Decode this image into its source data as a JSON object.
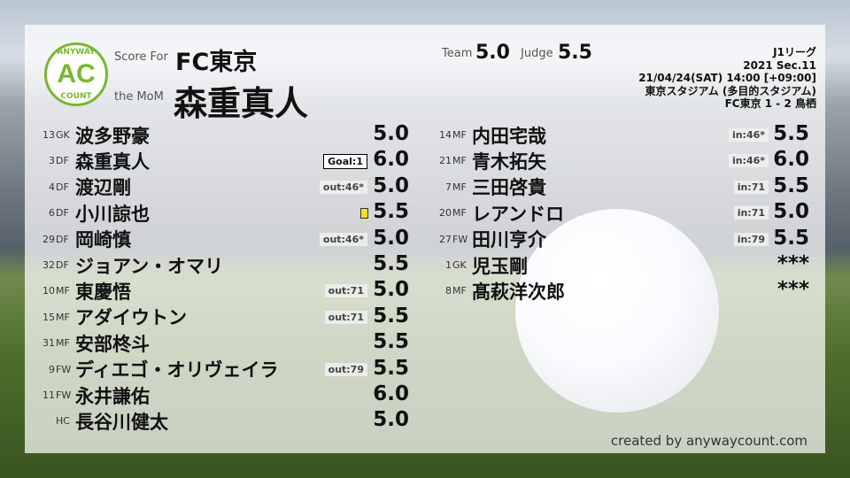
{
  "header": {
    "score_for_label": "Score For",
    "team": "FC東京",
    "mom_label": "the MoM",
    "mom": "森重真人",
    "team_label": "Team",
    "team_score": "5.0",
    "judge_label": "Judge",
    "judge_score": "5.5"
  },
  "logo": {
    "top": "ANYWAY",
    "mid": "AC",
    "bottom": "COUNT",
    "color": "#7ab72e"
  },
  "match": {
    "league": "J1リーグ",
    "section": "2021 Sec.11",
    "datetime": "21/04/24(SAT) 14:00 [+09:00]",
    "venue": "東京スタジアム (多目的スタジアム)",
    "result": "FC東京 1 - 2 鳥栖"
  },
  "left": [
    {
      "num": "13",
      "pos": "GK",
      "name": "波多野豪",
      "badge": "",
      "score": "5.0"
    },
    {
      "num": "3",
      "pos": "DF",
      "name": "森重真人",
      "badge": "Goal:1",
      "goal": true,
      "score": "6.0"
    },
    {
      "num": "4",
      "pos": "DF",
      "name": "渡辺剛",
      "badge": "out:46*",
      "score": "5.0"
    },
    {
      "num": "6",
      "pos": "DF",
      "name": "小川諒也",
      "badge": "",
      "card": "yellow",
      "score": "5.5"
    },
    {
      "num": "29",
      "pos": "DF",
      "name": "岡崎慎",
      "badge": "out:46*",
      "score": "5.0"
    },
    {
      "num": "32",
      "pos": "DF",
      "name": "ジョアン・オマリ",
      "badge": "",
      "score": "5.5"
    },
    {
      "num": "10",
      "pos": "MF",
      "name": "東慶悟",
      "badge": "out:71",
      "score": "5.0"
    },
    {
      "num": "15",
      "pos": "MF",
      "name": "アダイウトン",
      "badge": "out:71",
      "score": "5.5"
    },
    {
      "num": "31",
      "pos": "MF",
      "name": "安部柊斗",
      "badge": "",
      "score": "5.5"
    },
    {
      "num": "9",
      "pos": "FW",
      "name": "ディエゴ・オリヴェイラ",
      "badge": "out:79",
      "score": "5.5"
    },
    {
      "num": "11",
      "pos": "FW",
      "name": "永井謙佑",
      "badge": "",
      "score": "6.0"
    },
    {
      "num": "",
      "pos": "HC",
      "name": "長谷川健太",
      "badge": "",
      "score": "5.0"
    }
  ],
  "right": [
    {
      "num": "14",
      "pos": "MF",
      "name": "内田宅哉",
      "badge": "in:46*",
      "score": "5.5"
    },
    {
      "num": "21",
      "pos": "MF",
      "name": "青木拓矢",
      "badge": "in:46*",
      "score": "6.0"
    },
    {
      "num": "7",
      "pos": "MF",
      "name": "三田啓貴",
      "badge": "in:71",
      "score": "5.5"
    },
    {
      "num": "20",
      "pos": "MF",
      "name": "レアンドロ",
      "badge": "in:71",
      "score": "5.0"
    },
    {
      "num": "27",
      "pos": "FW",
      "name": "田川亨介",
      "badge": "in:79",
      "score": "5.5"
    },
    {
      "num": "1",
      "pos": "GK",
      "name": "児玉剛",
      "badge": "",
      "score": "***"
    },
    {
      "num": "8",
      "pos": "MF",
      "name": "髙萩洋次郎",
      "badge": "",
      "score": "***"
    }
  ],
  "footer": {
    "credit": "created by anywaycount.com"
  }
}
